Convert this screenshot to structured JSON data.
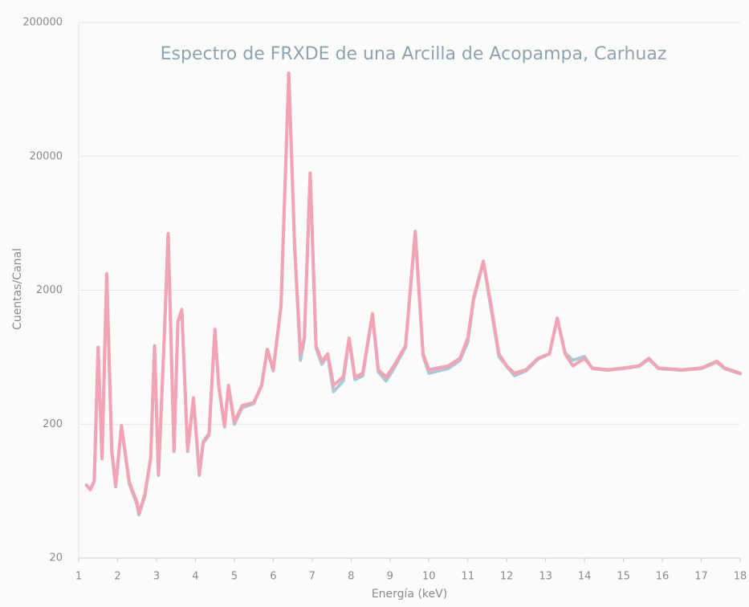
{
  "chart_data": {
    "type": "line",
    "title": "Espectro de FRXDE de una Arcilla de Acopampa, Carhuaz",
    "x_label": "Energía (keV)",
    "y_label": "Cuentas/Canal",
    "yscale": "log",
    "grid": true,
    "xlim": [
      1,
      18
    ],
    "xticks": [
      1,
      2,
      3,
      4,
      5,
      6,
      7,
      8,
      9,
      10,
      11,
      12,
      13,
      14,
      15,
      16,
      17,
      18
    ],
    "ylim": [
      20,
      200000
    ],
    "yticks": [
      20,
      200,
      2000,
      20000,
      200000
    ],
    "x": [
      1.2,
      1.3,
      1.4,
      1.5,
      1.6,
      1.72,
      1.85,
      1.95,
      2.1,
      2.3,
      2.5,
      2.55,
      2.7,
      2.85,
      2.95,
      3.05,
      3.2,
      3.3,
      3.45,
      3.55,
      3.65,
      3.8,
      3.95,
      4.1,
      4.2,
      4.35,
      4.5,
      4.6,
      4.75,
      4.85,
      5.0,
      5.2,
      5.5,
      5.7,
      5.85,
      6.0,
      6.2,
      6.4,
      6.55,
      6.7,
      6.8,
      6.95,
      7.1,
      7.25,
      7.4,
      7.55,
      7.8,
      7.95,
      8.1,
      8.3,
      8.55,
      8.7,
      8.9,
      9.1,
      9.4,
      9.65,
      9.85,
      10.0,
      10.5,
      10.8,
      11.0,
      11.15,
      11.4,
      11.6,
      11.8,
      12.0,
      12.2,
      12.5,
      12.8,
      13.1,
      13.3,
      13.5,
      13.7,
      14.0,
      14.2,
      14.6,
      15.0,
      15.4,
      15.65,
      15.9,
      16.5,
      17.0,
      17.4,
      17.6,
      18.0
    ],
    "series": [
      {
        "color": "#a9c9d9",
        "values": [
          70,
          65,
          75,
          740,
          110,
          2600,
          125,
          68,
          190,
          72,
          50,
          42,
          58,
          110,
          760,
          83,
          880,
          5200,
          125,
          1150,
          1420,
          125,
          310,
          83,
          145,
          165,
          1000,
          380,
          190,
          380,
          200,
          265,
          285,
          385,
          715,
          500,
          1520,
          83000,
          4200,
          600,
          860,
          14800,
          740,
          560,
          650,
          350,
          420,
          860,
          430,
          460,
          1320,
          490,
          420,
          520,
          750,
          5400,
          650,
          480,
          520,
          600,
          820,
          1700,
          3250,
          1450,
          640,
          540,
          460,
          500,
          610,
          670,
          1230,
          680,
          600,
          640,
          520,
          505,
          520,
          540,
          610,
          520,
          505,
          520,
          580,
          520,
          475
        ]
      },
      {
        "color": "#f3a3b3",
        "values": [
          70,
          65,
          75,
          750,
          112,
          2660,
          128,
          70,
          195,
          74,
          52,
          43,
          60,
          112,
          770,
          85,
          900,
          5300,
          128,
          1170,
          1440,
          128,
          315,
          85,
          148,
          170,
          1020,
          390,
          195,
          390,
          208,
          275,
          290,
          390,
          725,
          510,
          1540,
          84000,
          4300,
          670,
          880,
          15000,
          770,
          590,
          670,
          390,
          450,
          880,
          450,
          480,
          1340,
          510,
          450,
          545,
          770,
          5500,
          670,
          510,
          545,
          620,
          880,
          1760,
          3300,
          1540,
          670,
          545,
          480,
          510,
          620,
          670,
          1240,
          670,
          545,
          620,
          525,
          510,
          525,
          545,
          620,
          525,
          510,
          525,
          590,
          525,
          480
        ]
      }
    ]
  }
}
